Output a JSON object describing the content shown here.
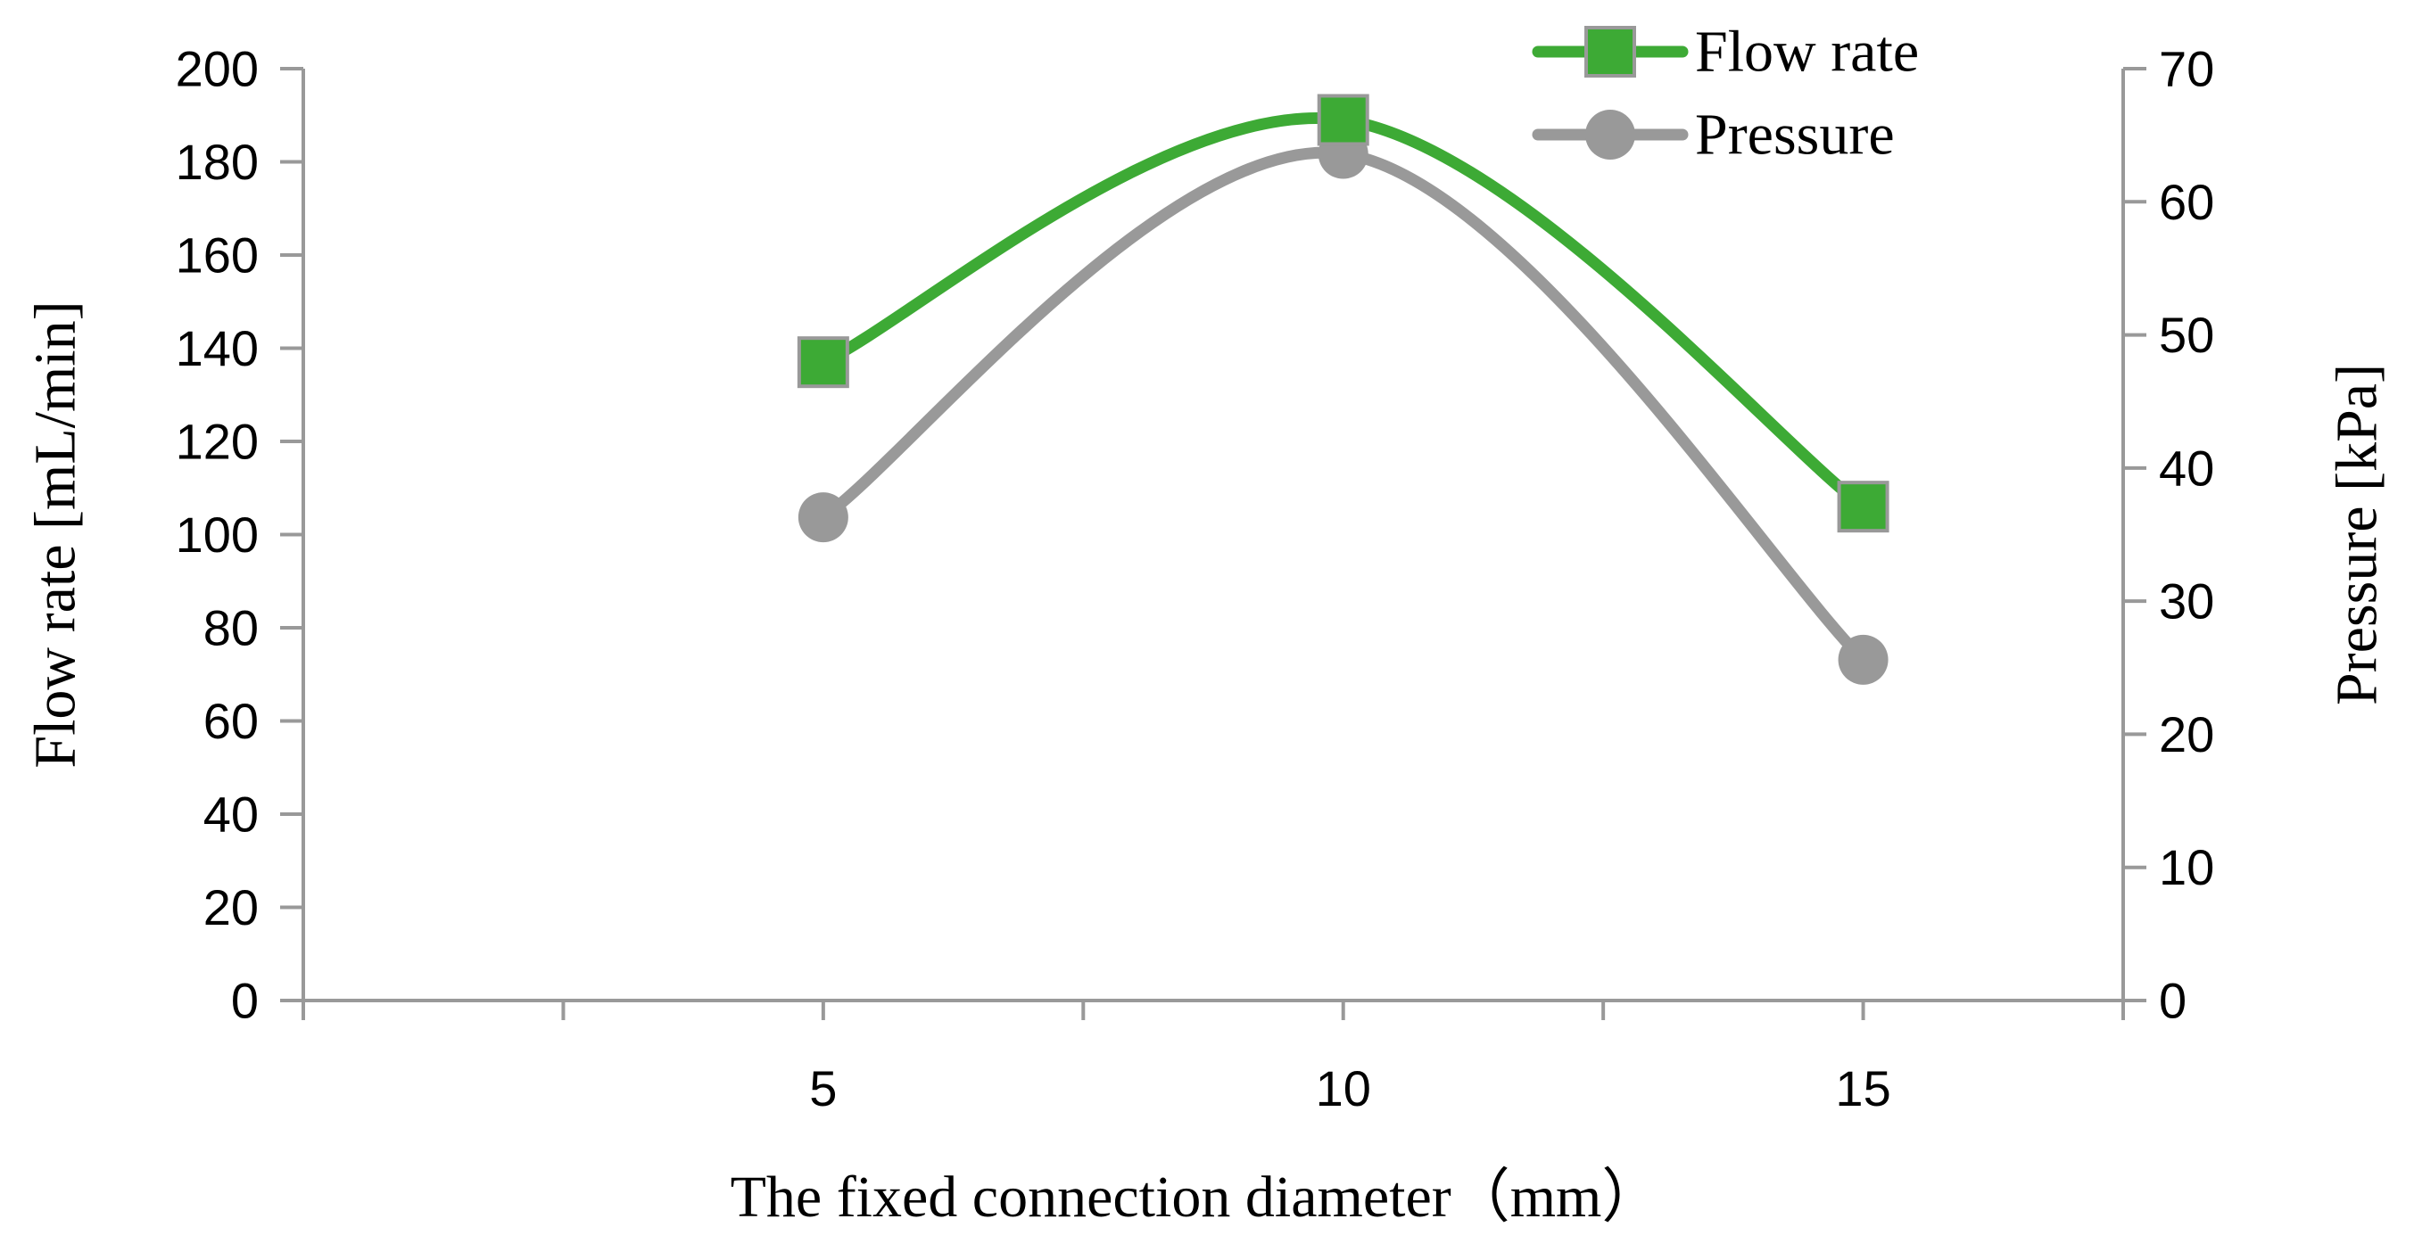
{
  "chart_data": {
    "type": "line",
    "title": "",
    "x": [
      5,
      10,
      15
    ],
    "xlabel": "The fixed connection diameter（mm）",
    "ylabel_left": "Flow rate [mL/min]",
    "ylabel_right": "Pressure [kPa]",
    "ylim_left": [
      0,
      200
    ],
    "ylim_right": [
      0,
      70
    ],
    "yticks_left": [
      0,
      20,
      40,
      60,
      80,
      100,
      120,
      140,
      160,
      180,
      200
    ],
    "yticks_right": [
      0,
      10,
      20,
      30,
      40,
      50,
      60,
      70
    ],
    "xticks_labeled": [
      5,
      10,
      15
    ],
    "xlim": [
      0,
      17.5
    ],
    "grid": false,
    "legend_position": "top-right",
    "series": [
      {
        "name": "Flow rate",
        "axis": "left",
        "values": [
          137,
          189,
          106
        ],
        "color": "#3DAA35",
        "marker": "square",
        "smooth": true
      },
      {
        "name": "Pressure",
        "axis": "right",
        "values": [
          36.3,
          63.6,
          25.6
        ],
        "color": "#999999",
        "marker": "circle",
        "smooth": true
      }
    ]
  }
}
